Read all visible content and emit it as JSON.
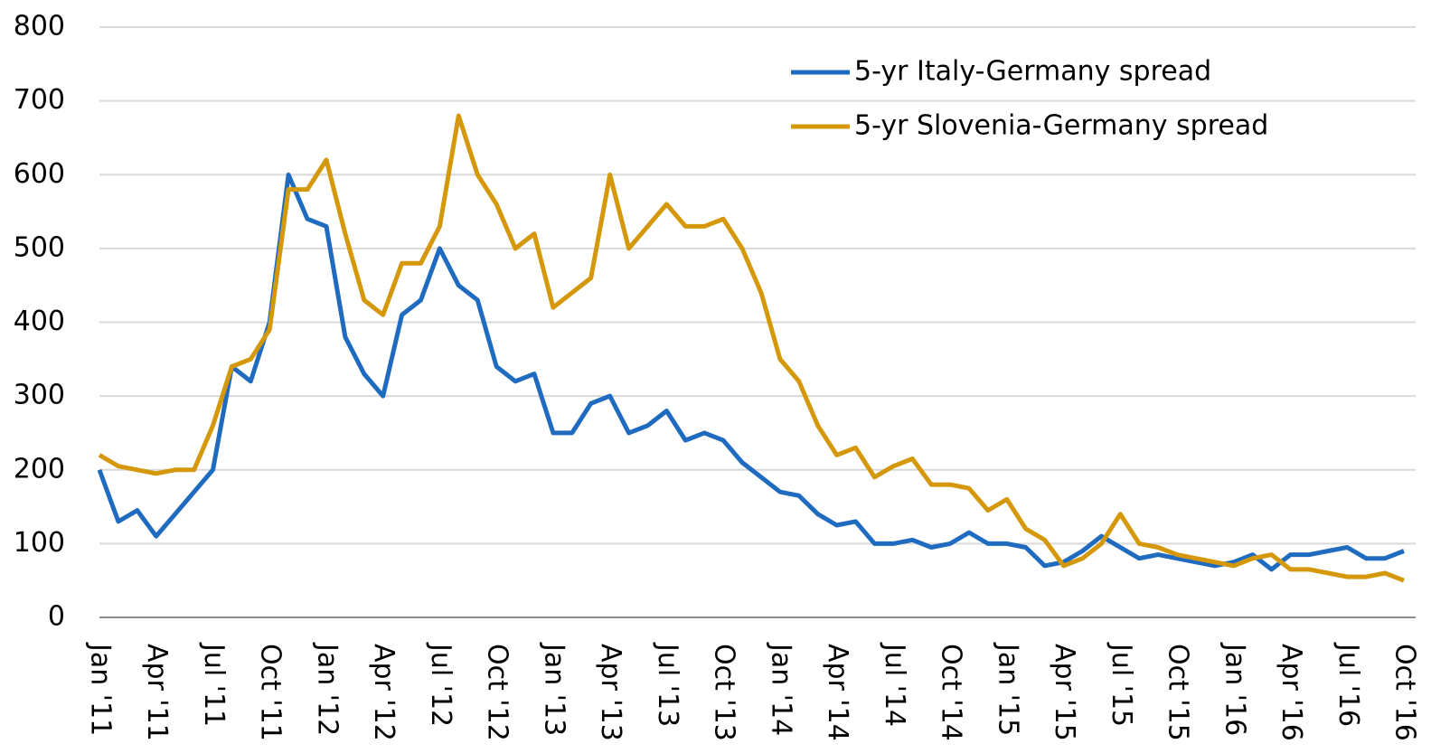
{
  "chart_data": {
    "type": "line",
    "categories": [
      "Jan '11",
      null,
      null,
      "Apr '11",
      null,
      null,
      "Jul '11",
      null,
      null,
      "Oct '11",
      null,
      null,
      "Jan '12",
      null,
      null,
      "Apr '12",
      null,
      null,
      "Jul '12",
      null,
      null,
      "Oct '12",
      null,
      null,
      "Jan '13",
      null,
      null,
      "Apr '13",
      null,
      null,
      "Jul '13",
      null,
      null,
      "Oct '13",
      null,
      null,
      "Jan '14",
      null,
      null,
      "Apr '14",
      null,
      null,
      "Jul '14",
      null,
      null,
      "Oct '14",
      null,
      null,
      "Jan '15",
      null,
      null,
      "Apr '15",
      null,
      null,
      "Jul '15",
      null,
      null,
      "Oct '15",
      null,
      null,
      "Jan '16",
      null,
      null,
      "Apr '16",
      null,
      null,
      "Jul '16",
      null,
      null,
      "Oct '16"
    ],
    "series": [
      {
        "name": "5-yr Italy-Germany spread",
        "color": "#1f6bbf",
        "values": [
          200,
          130,
          145,
          110,
          140,
          170,
          200,
          340,
          320,
          400,
          600,
          540,
          530,
          380,
          330,
          300,
          410,
          430,
          500,
          450,
          430,
          340,
          320,
          330,
          250,
          250,
          290,
          300,
          250,
          260,
          280,
          240,
          250,
          240,
          210,
          190,
          170,
          165,
          140,
          125,
          130,
          100,
          100,
          105,
          95,
          100,
          115,
          100,
          100,
          95,
          70,
          75,
          90,
          110,
          95,
          80,
          85,
          80,
          75,
          70,
          75,
          85,
          65,
          85,
          85,
          90,
          95,
          80,
          80,
          90
        ]
      },
      {
        "name": "5-yr Slovenia-Germany spread",
        "color": "#d4980a",
        "values": [
          220,
          205,
          200,
          195,
          200,
          200,
          260,
          340,
          350,
          390,
          580,
          580,
          620,
          520,
          430,
          410,
          480,
          480,
          530,
          680,
          600,
          560,
          500,
          520,
          420,
          440,
          460,
          600,
          500,
          530,
          560,
          530,
          530,
          540,
          500,
          440,
          350,
          320,
          260,
          220,
          230,
          190,
          205,
          215,
          180,
          180,
          175,
          145,
          160,
          120,
          105,
          70,
          80,
          100,
          140,
          100,
          95,
          85,
          80,
          75,
          70,
          80,
          85,
          65,
          65,
          60,
          55,
          55,
          60,
          50
        ]
      }
    ],
    "ylim": [
      0,
      800
    ],
    "yticks": [
      0,
      100,
      200,
      300,
      400,
      500,
      600,
      700,
      800
    ],
    "grid": true
  }
}
